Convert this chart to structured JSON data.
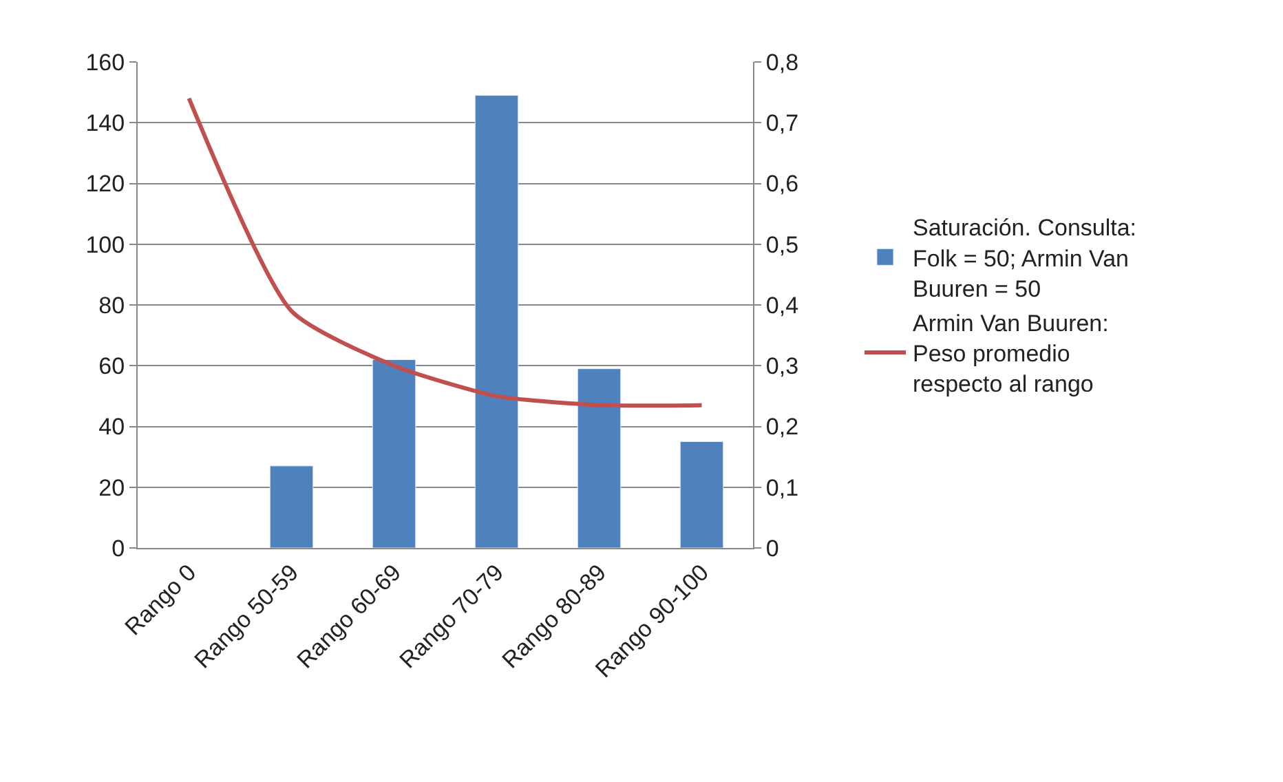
{
  "chart_data": {
    "type": "bar",
    "categories": [
      "Rango 0",
      "Rango 50-59",
      "Rango 60-69",
      "Rango 70-79",
      "Rango 80-89",
      "Rango 90-100"
    ],
    "series": [
      {
        "name": "Saturación. Consulta: Folk = 50; Armin Van Buuren = 50",
        "color": "#4f81bd",
        "values": [
          null,
          27,
          62,
          149,
          59,
          35
        ]
      },
      {
        "name": "Armin Van Buuren: Peso promedio respecto al rango",
        "color": "#c0504d",
        "type": "line",
        "axis": "y2",
        "values": [
          0.74,
          0.39,
          0.3,
          0.25,
          0.235,
          0.235
        ]
      }
    ],
    "ylim": [
      0,
      160
    ],
    "yticks": [
      0,
      20,
      40,
      60,
      80,
      100,
      120,
      140,
      160
    ],
    "y2lim": [
      0,
      0.8
    ],
    "y2ticks": [
      {
        "value": 0,
        "label": "0"
      },
      {
        "value": 0.1,
        "label": "0,1"
      },
      {
        "value": 0.2,
        "label": "0,2"
      },
      {
        "value": 0.3,
        "label": "0,3"
      },
      {
        "value": 0.4,
        "label": "0,4"
      },
      {
        "value": 0.5,
        "label": "0,5"
      },
      {
        "value": 0.6,
        "label": "0,6"
      },
      {
        "value": 0.7,
        "label": "0,7"
      },
      {
        "value": 0.8,
        "label": "0,8"
      }
    ],
    "grid": "y",
    "legend": "right",
    "marker": "none",
    "line_style": "solid"
  }
}
